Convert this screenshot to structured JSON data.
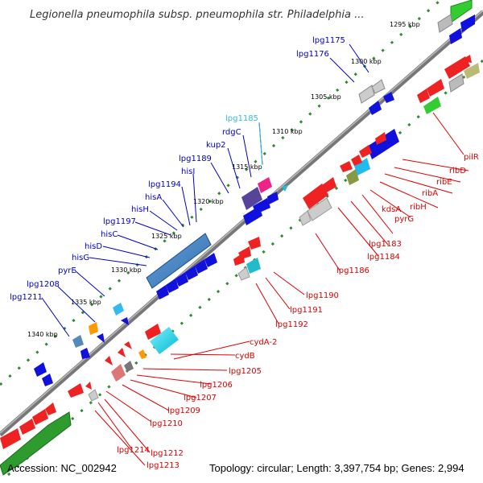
{
  "title": "Legionella pneumophila subsp. pneumophila str. Philadelphia ...",
  "footer": {
    "accession": "Accession: NC_002942",
    "summary": "Topology: circular; Length: 3,397,754 bp; Genes: 2,994"
  },
  "colors": {
    "forward_label": "#0000cc",
    "reverse_label": "#dd0000",
    "highlight_label": "#33bbdd",
    "backbone": "#888888",
    "dots": "#2e8b2e"
  },
  "kbp_ticks": [
    {
      "label": "1295 kbp"
    },
    {
      "label": "1300 kbp"
    },
    {
      "label": "1305 kbp"
    },
    {
      "label": "1310 kbp"
    },
    {
      "label": "1315 kbp"
    },
    {
      "label": "1320 kbp"
    },
    {
      "label": "1325 kbp"
    },
    {
      "label": "1330 kbp"
    },
    {
      "label": "1335 kbp"
    },
    {
      "label": "1340 kbp"
    }
  ],
  "forward_labels": [
    "lpg1175",
    "lpg1176",
    "lpg1185",
    "rdgC",
    "kup2",
    "lpg1189",
    "hisI",
    "lpg1194",
    "hisA",
    "hisH",
    "lpg1197",
    "hisC",
    "hisD",
    "hisG",
    "pyrE",
    "lpg1208",
    "lpg1211"
  ],
  "reverse_labels": [
    "pilR",
    "ribD",
    "ribE",
    "ribA",
    "ribH",
    "kdsA",
    "pyrG",
    "lpg1183",
    "lpg1184",
    "lpg1186",
    "lpg1190",
    "lpg1191",
    "lpg1192",
    "cydA-2",
    "cydB",
    "lpg1205",
    "lpg1206",
    "lpg1207",
    "lpg1209",
    "lpg1210",
    "lpg1214",
    "lpg1212",
    "lpg1213"
  ]
}
